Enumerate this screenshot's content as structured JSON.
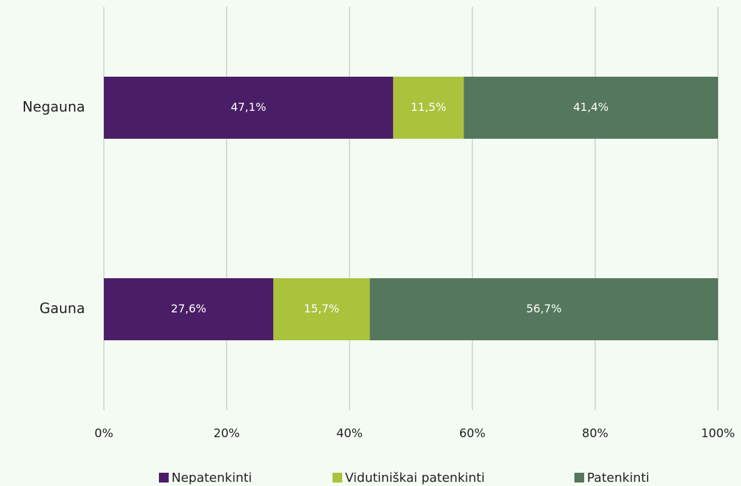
{
  "chart_data": {
    "type": "bar",
    "stacked": true,
    "categories": [
      "Negauna",
      "Gauna"
    ],
    "series": [
      {
        "name": "Nepatenkinti",
        "color": "#4a1e66",
        "values": [
          47.1,
          27.6
        ],
        "value_labels": [
          "47,1%",
          "27,6%"
        ]
      },
      {
        "name": "Vidutiniškai patenkinti",
        "color": "#a9c33d",
        "values": [
          11.5,
          15.7
        ],
        "value_labels": [
          "11,5%",
          "15,7%"
        ]
      },
      {
        "name": "Patenkinti",
        "color": "#55785c",
        "values": [
          41.4,
          56.7
        ],
        "value_labels": [
          "41,4%",
          "56,7%"
        ]
      }
    ],
    "xlim": [
      0,
      100
    ],
    "xticks": [
      {
        "value": 0,
        "label": "0%"
      },
      {
        "value": 20,
        "label": "20%"
      },
      {
        "value": 40,
        "label": "40%"
      },
      {
        "value": 60,
        "label": "60%"
      },
      {
        "value": 80,
        "label": "80%"
      },
      {
        "value": 100,
        "label": "100%"
      }
    ],
    "grid": true
  }
}
